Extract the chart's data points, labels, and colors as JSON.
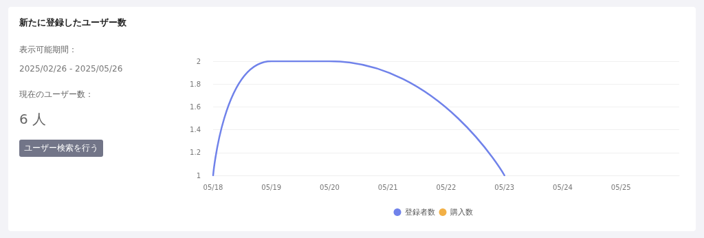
{
  "chart_data": [
    {
      "type": "other",
      "title": "新たに登録したユーザー数",
      "annotations": [
        "表示可能期間：",
        "2025/02/26 - 2025/05/26",
        "現在のユーザー数：",
        "6 人",
        "ユーザー検索を行う"
      ]
    },
    {
      "type": "line",
      "x": [
        "2025-05-18",
        "2025-05-19",
        "2025-05-20",
        "2025-05-23"
      ],
      "series": [
        {
          "name": "登録者数",
          "color": "#7082ea",
          "values": [
            1,
            2,
            2,
            1
          ]
        },
        {
          "name": "購入数",
          "color": "#f2b046",
          "values": [
            null,
            null,
            null,
            null
          ]
        }
      ],
      "xlim": [
        "2025-05-18",
        "2025-05-26"
      ],
      "xticks": [
        {
          "value": "2025-05-18",
          "label": "05/18"
        },
        {
          "value": "2025-05-19",
          "label": "05/19"
        },
        {
          "value": "2025-05-20",
          "label": "05/20"
        },
        {
          "value": "2025-05-21",
          "label": "05/21"
        },
        {
          "value": "2025-05-22",
          "label": "05/22"
        },
        {
          "value": "2025-05-23",
          "label": "05/23"
        },
        {
          "value": "2025-05-24",
          "label": "05/24"
        },
        {
          "value": "2025-05-25",
          "label": "05/25"
        }
      ],
      "ylim": [
        1,
        2
      ],
      "yticks": [
        1,
        1.2,
        1.4,
        1.6,
        1.8,
        2
      ],
      "grid": "y",
      "legend": "bottom",
      "marker": "none",
      "line_style": "solid"
    }
  ]
}
